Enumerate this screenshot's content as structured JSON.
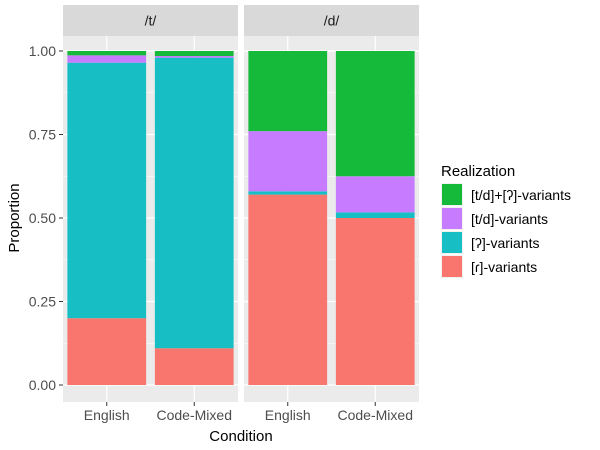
{
  "chart_data": {
    "type": "bar",
    "stacked": true,
    "facets": [
      "/t/",
      "/d/"
    ],
    "categories": [
      "English",
      "Code-Mixed"
    ],
    "xlabel": "Condition",
    "ylabel": "Proportion",
    "ylim": [
      0,
      1
    ],
    "yticks": [
      "0.00",
      "0.25",
      "0.50",
      "0.75",
      "1.00"
    ],
    "legend": {
      "title": "Realization",
      "position": "right",
      "order": [
        "[t/d]+[ʔ]-variants",
        "[t/d]-variants",
        "[ʔ]-variants",
        "[ɾ]-variants"
      ]
    },
    "series": [
      {
        "name": "[ɾ]-variants",
        "color": "#F8766D",
        "values": {
          "/t/": [
            0.2,
            0.11
          ],
          "/d/": [
            0.57,
            0.5
          ]
        }
      },
      {
        "name": "[ʔ]-variants",
        "color": "#17BFC5",
        "values": {
          "/t/": [
            0.765,
            0.87
          ],
          "/d/": [
            0.01,
            0.017
          ]
        }
      },
      {
        "name": "[t/d]-variants",
        "color": "#C77CFF",
        "values": {
          "/t/": [
            0.022,
            0.005
          ],
          "/d/": [
            0.18,
            0.108
          ]
        }
      },
      {
        "name": "[t/d]+[ʔ]-variants",
        "color": "#16BA3B",
        "values": {
          "/t/": [
            0.013,
            0.015
          ],
          "/d/": [
            0.24,
            0.375
          ]
        }
      }
    ]
  }
}
